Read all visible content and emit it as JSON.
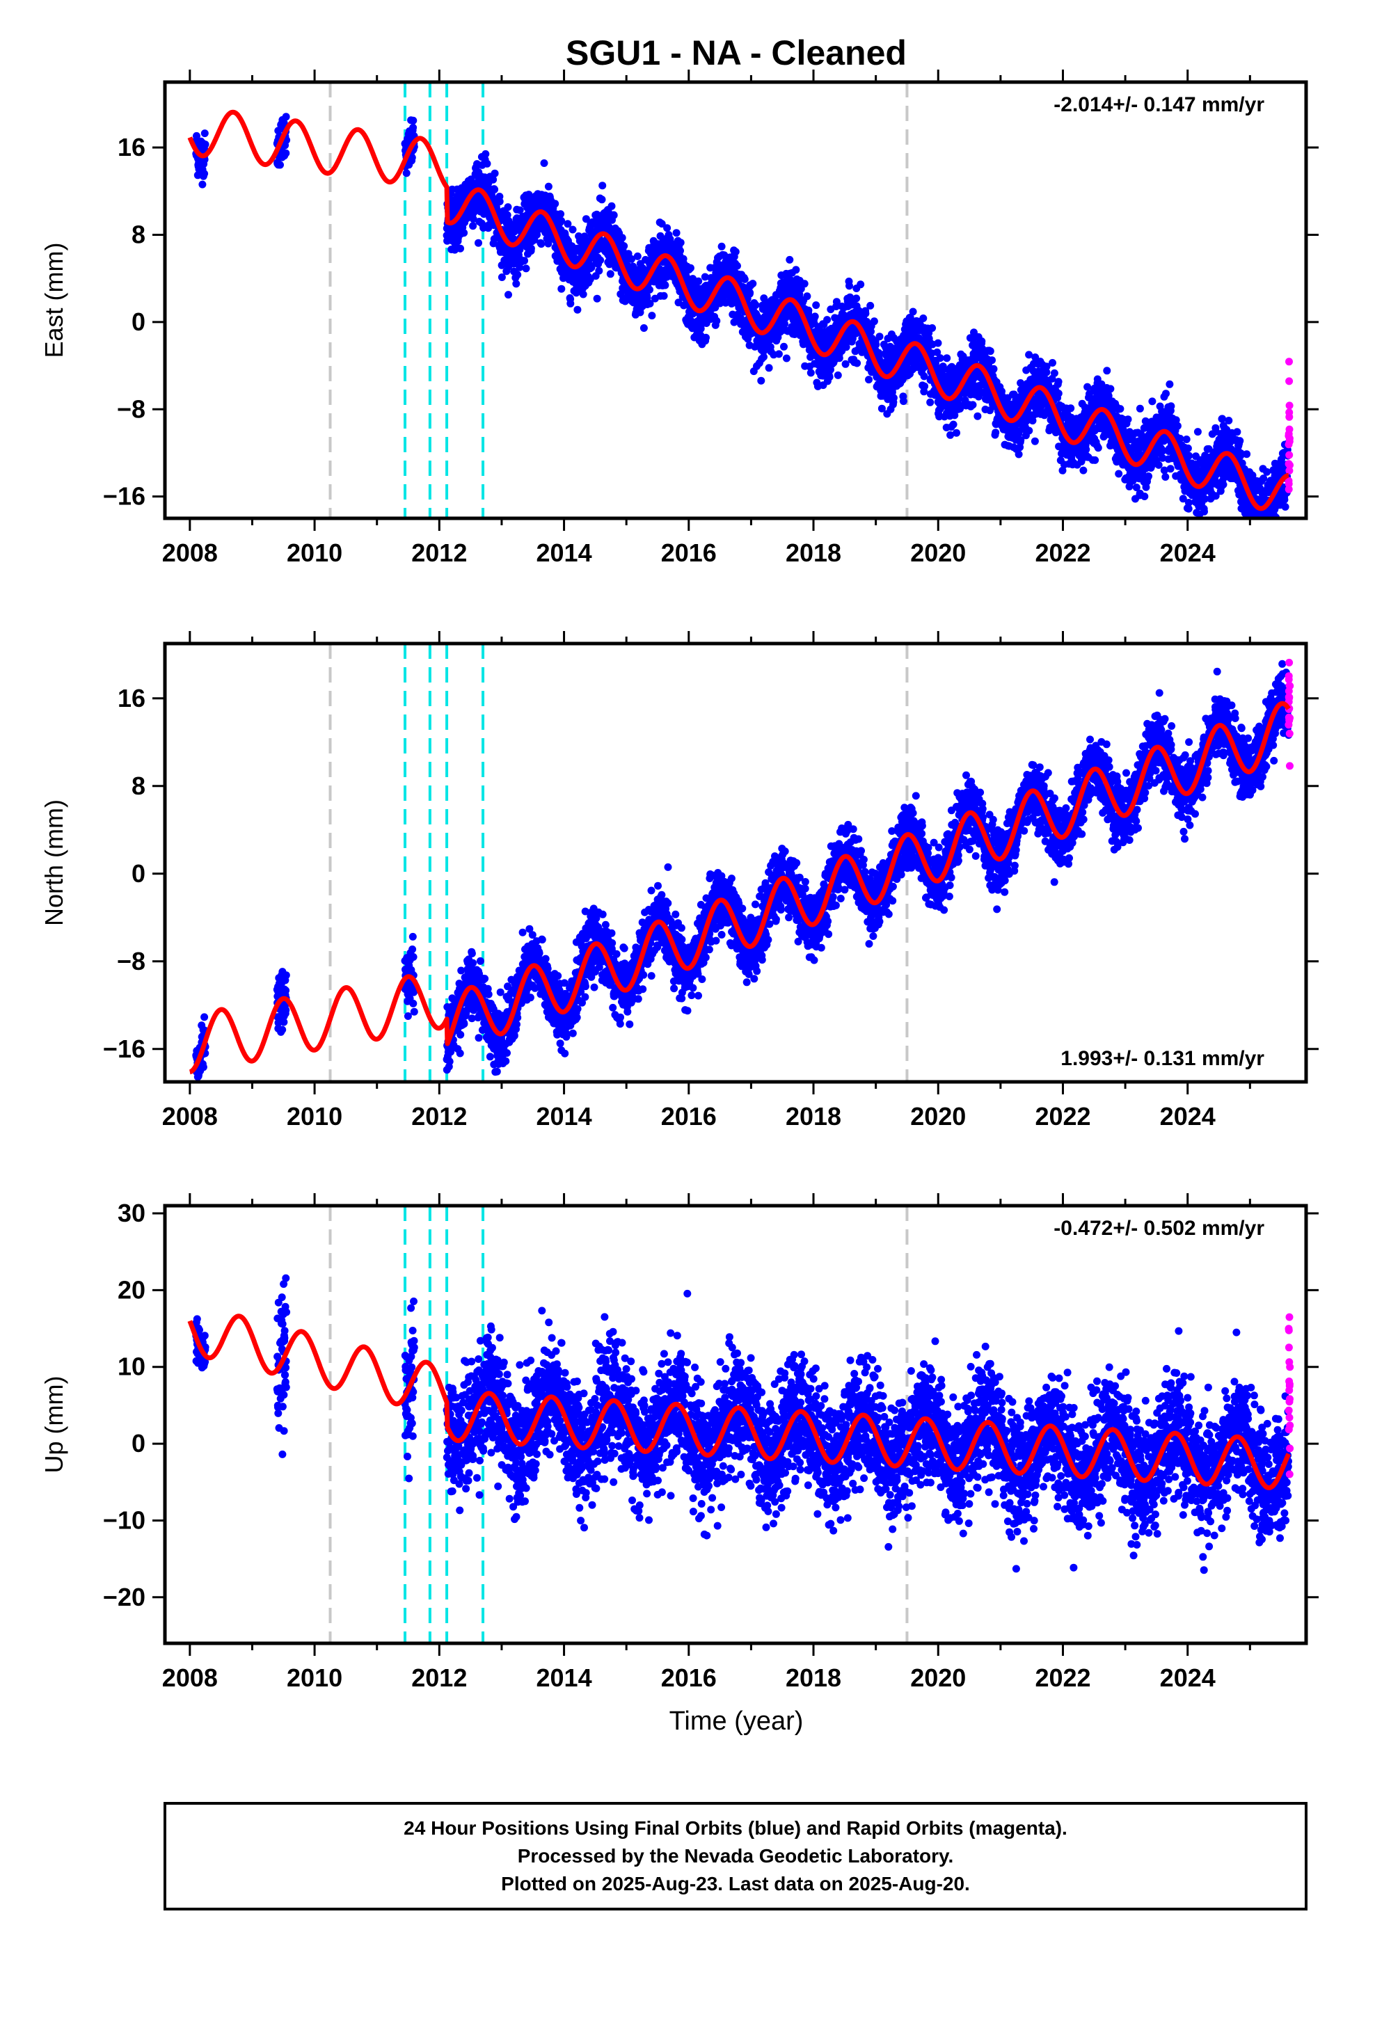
{
  "title": "SGU1  - NA - Cleaned",
  "xlabel": "Time (year)",
  "footer": {
    "lines": [
      "24 Hour Positions Using Final Orbits (blue) and Rapid Orbits (magenta).",
      "Processed by the Nevada Geodetic Laboratory.",
      "Plotted on 2025-Aug-23. Last data on 2025-Aug-20."
    ]
  },
  "colors": {
    "final_orbits": "#0000ff",
    "rapid_orbits": "#ff00ff",
    "model": "#ff0000",
    "gray_event_line": "#c8c8c8",
    "cyan_event_line": "#00e5e5"
  },
  "chart_data": [
    {
      "type": "scatter",
      "ylabel": "East (mm)",
      "rate_text": "-2.014+/- 0.147 mm/yr",
      "rate_position": "top-right",
      "xlim": [
        2007.6,
        2025.9
      ],
      "ylim": [
        -18,
        22
      ],
      "xticks": [
        2008,
        2010,
        2012,
        2014,
        2016,
        2018,
        2020,
        2022,
        2024
      ],
      "yticks": [
        -16,
        -8,
        0,
        8,
        16
      ],
      "ytick_labels": [
        "−16",
        "−8",
        "0",
        "8",
        "16"
      ],
      "gray_lines": [
        2010.25,
        2019.5
      ],
      "cyan_lines": [
        2011.45,
        2011.85,
        2012.12,
        2012.7
      ],
      "model": {
        "base_year": 2012.5,
        "offset_at_base": 10.4,
        "rate": -2.014,
        "amplitude": 2.0,
        "phase_peak": 0.65,
        "early_segment": {
          "start": 2008.0,
          "end": 2012.12,
          "base_year": 2010.0,
          "offset_at_base": 16.0,
          "rate": -0.8,
          "amplitude": 2.2,
          "phase_peak": 0.7
        }
      },
      "data_segments": [
        {
          "start": 2008.1,
          "end": 2008.25,
          "scatter": 1.0
        },
        {
          "start": 2009.4,
          "end": 2009.55,
          "scatter": 1.0
        },
        {
          "start": 2011.45,
          "end": 2011.6,
          "scatter": 1.0
        },
        {
          "start": 2012.12,
          "end": 2025.62,
          "scatter": 1.4
        }
      ],
      "rapid_segment": {
        "start": 2025.62,
        "end": 2025.64,
        "offset": 2.5,
        "scatter": 2.5
      }
    },
    {
      "type": "scatter",
      "ylabel": "North (mm)",
      "rate_text": "1.993+/- 0.131 mm/yr",
      "rate_position": "bottom-right",
      "xlim": [
        2007.6,
        2025.9
      ],
      "ylim": [
        -19,
        21
      ],
      "xticks": [
        2008,
        2010,
        2012,
        2014,
        2016,
        2018,
        2020,
        2022,
        2024
      ],
      "yticks": [
        -16,
        -8,
        0,
        8,
        16
      ],
      "ytick_labels": [
        "−16",
        "−8",
        "0",
        "8",
        "16"
      ],
      "gray_lines": [
        2010.25,
        2019.5
      ],
      "cyan_lines": [
        2011.45,
        2011.85,
        2012.12,
        2012.7
      ],
      "model": {
        "base_year": 2012.5,
        "offset_at_base": -13.0,
        "rate": 1.993,
        "amplitude": 2.6,
        "phase_peak": 0.5,
        "early_segment": {
          "start": 2008.0,
          "end": 2012.12,
          "base_year": 2010.0,
          "offset_at_base": -13.5,
          "rate": 1.0,
          "amplitude": 2.6,
          "phase_peak": 0.5
        }
      },
      "data_segments": [
        {
          "start": 2008.1,
          "end": 2008.25,
          "scatter": 1.0
        },
        {
          "start": 2009.4,
          "end": 2009.55,
          "scatter": 1.5
        },
        {
          "start": 2011.45,
          "end": 2011.6,
          "scatter": 1.5
        },
        {
          "start": 2012.12,
          "end": 2025.62,
          "scatter": 1.4
        }
      ],
      "rapid_segment": {
        "start": 2025.62,
        "end": 2025.64,
        "offset": 0.8,
        "scatter": 2.0
      }
    },
    {
      "type": "scatter",
      "ylabel": "Up (mm)",
      "rate_text": "-0.472+/- 0.502 mm/yr",
      "rate_position": "top-right",
      "xlim": [
        2007.6,
        2025.9
      ],
      "ylim": [
        -26,
        31
      ],
      "xticks": [
        2008,
        2010,
        2012,
        2014,
        2016,
        2018,
        2020,
        2022,
        2024
      ],
      "yticks": [
        -20,
        -10,
        0,
        10,
        20,
        30
      ],
      "ytick_labels": [
        "−20",
        "−10",
        "0",
        "10",
        "20",
        "30"
      ],
      "gray_lines": [
        2010.25,
        2019.5
      ],
      "cyan_lines": [
        2011.45,
        2011.85,
        2012.12,
        2012.7
      ],
      "model": {
        "base_year": 2012.5,
        "offset_at_base": 3.5,
        "rate": -0.472,
        "amplitude": 3.2,
        "phase_peak": 0.8,
        "early_segment": {
          "start": 2008.0,
          "end": 2012.12,
          "base_year": 2010.0,
          "offset_at_base": 11.0,
          "rate": -2.0,
          "amplitude": 3.2,
          "phase_peak": 0.8
        }
      },
      "data_segments": [
        {
          "start": 2008.1,
          "end": 2008.25,
          "scatter": 1.5
        },
        {
          "start": 2009.4,
          "end": 2009.55,
          "scatter": 4.0
        },
        {
          "start": 2011.45,
          "end": 2011.6,
          "scatter": 4.0
        },
        {
          "start": 2012.12,
          "end": 2025.62,
          "scatter": 3.8
        }
      ],
      "rapid_segment": {
        "start": 2025.62,
        "end": 2025.64,
        "offset": 10.0,
        "scatter": 4.0
      }
    }
  ]
}
